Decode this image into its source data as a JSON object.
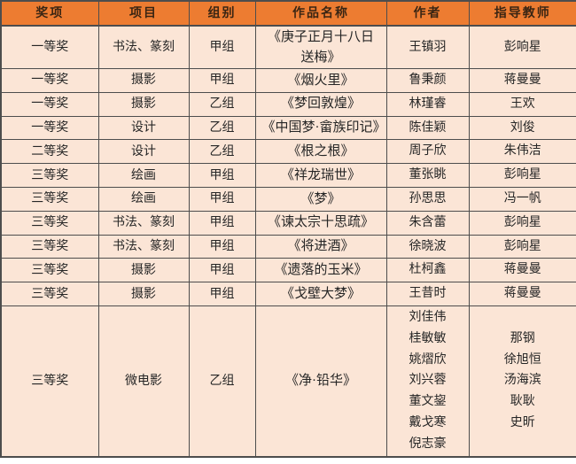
{
  "colors": {
    "header_bg": "#ED7C31",
    "row_bg": "#FBE5D6",
    "border": "#4D4D4D",
    "header_text": "#3A2513",
    "body_text": "#262626"
  },
  "table": {
    "headers": [
      "奖项",
      "项目",
      "组别",
      "作品名称",
      "作者",
      "指导教师"
    ],
    "rows": [
      {
        "award": "一等奖",
        "category": "书法、篆刻",
        "group": "甲组",
        "title": "《庚子正月十八日送梅》",
        "author": "王镇羽",
        "advisor": "彭响星"
      },
      {
        "award": "一等奖",
        "category": "摄影",
        "group": "甲组",
        "title": "《烟火里》",
        "author": "鲁秉颜",
        "advisor": "蒋曼曼"
      },
      {
        "award": "一等奖",
        "category": "摄影",
        "group": "乙组",
        "title": "《梦回敦煌》",
        "author": "林瑾睿",
        "advisor": "王欢"
      },
      {
        "award": "一等奖",
        "category": "设计",
        "group": "乙组",
        "title": "《中国梦·畲族印记》",
        "author": "陈佳颖",
        "advisor": "刘俊"
      },
      {
        "award": "二等奖",
        "category": "设计",
        "group": "乙组",
        "title": "《根之根》",
        "author": "周子欣",
        "advisor": "朱伟洁"
      },
      {
        "award": "三等奖",
        "category": "绘画",
        "group": "甲组",
        "title": "《祥龙瑞世》",
        "author": "董张眺",
        "advisor": "彭响星"
      },
      {
        "award": "三等奖",
        "category": "绘画",
        "group": "甲组",
        "title": "《梦》",
        "author": "孙思思",
        "advisor": "冯一帆"
      },
      {
        "award": "三等奖",
        "category": "书法、篆刻",
        "group": "甲组",
        "title": "《谏太宗十思疏》",
        "author": "朱含蕾",
        "advisor": "彭响星"
      },
      {
        "award": "三等奖",
        "category": "书法、篆刻",
        "group": "甲组",
        "title": "《将进酒》",
        "author": "徐晓波",
        "advisor": "彭响星"
      },
      {
        "award": "三等奖",
        "category": "摄影",
        "group": "甲组",
        "title": "《遗落的玉米》",
        "author": "杜柯鑫",
        "advisor": "蒋曼曼"
      },
      {
        "award": "三等奖",
        "category": "摄影",
        "group": "甲组",
        "title": "《戈壁大梦》",
        "author": "王昔时",
        "advisor": "蒋曼曼"
      },
      {
        "award": "三等奖",
        "category": "微电影",
        "group": "乙组",
        "title": "《净·铅华》",
        "author": [
          "刘佳伟",
          "桂敏敏",
          "姚熠欣",
          "刘兴蓉",
          "董文鋆",
          "戴戈寒",
          "倪志豪"
        ],
        "advisor": [
          "那钢",
          "徐旭恒",
          "汤海滨",
          "耿耿",
          "史昕"
        ]
      }
    ]
  }
}
